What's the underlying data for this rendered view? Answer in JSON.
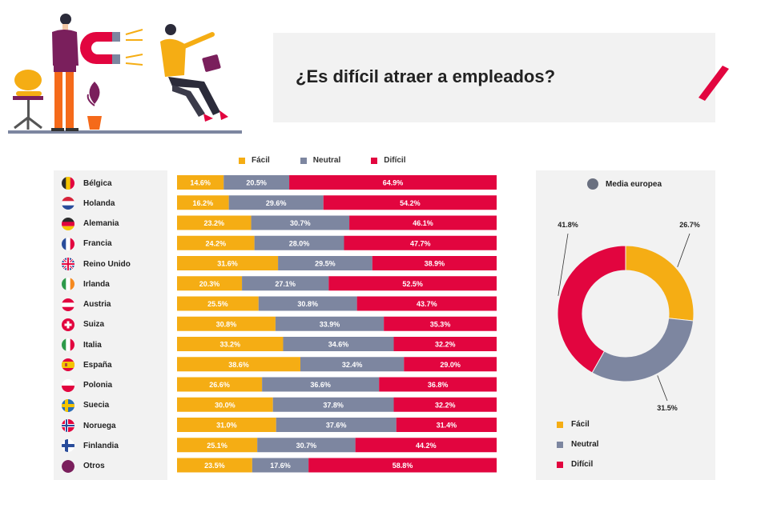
{
  "title": "¿Es difícil atraer a empleados?",
  "colors": {
    "facil": "#f5ad14",
    "neutral": "#7d86a0",
    "dificil": "#e2053f"
  },
  "legend": [
    "Fácil",
    "Neutral",
    "Difícil"
  ],
  "donut_title": "Media europea",
  "chart_data": [
    {
      "type": "bar",
      "stacked": true,
      "orientation": "horizontal",
      "unit": "%",
      "categories": [
        "Bélgica",
        "Holanda",
        "Alemania",
        "Francia",
        "Reino Unido",
        "Irlanda",
        "Austria",
        "Suiza",
        "Italia",
        "España",
        "Polonia",
        "Suecia",
        "Noruega",
        "Finlandia",
        "Otros"
      ],
      "flags": [
        "belgium-flag-icon",
        "netherlands-flag-icon",
        "germany-flag-icon",
        "france-flag-icon",
        "uk-flag-icon",
        "ireland-flag-icon",
        "austria-flag-icon",
        "switzerland-flag-icon",
        "italy-flag-icon",
        "spain-flag-icon",
        "poland-flag-icon",
        "sweden-flag-icon",
        "norway-flag-icon",
        "finland-flag-icon",
        "other-icon"
      ],
      "series": [
        {
          "name": "Fácil",
          "values": [
            14.6,
            16.2,
            23.2,
            24.2,
            31.6,
            20.3,
            25.5,
            30.8,
            33.2,
            38.6,
            26.6,
            30.0,
            31.0,
            25.1,
            23.5
          ],
          "labels": [
            "14.6%",
            "16.2%",
            "23.2%",
            "24.2%",
            "31.6%",
            "20.3%",
            "25.5%",
            "30.8%",
            "33.2%",
            "38.6%",
            "26.6%",
            "30.0%",
            "31.0%",
            "25.1%",
            "23.5%"
          ]
        },
        {
          "name": "Neutral",
          "values": [
            20.5,
            29.6,
            30.7,
            28.0,
            29.5,
            27.1,
            30.8,
            33.9,
            34.6,
            32.4,
            36.6,
            37.8,
            37.6,
            30.7,
            17.6
          ],
          "labels": [
            "20.5%",
            "29.6%",
            "30.7%",
            "28.0%",
            "29.5%",
            "27.1%",
            "30.8%",
            "33.9%",
            "34.6%",
            "32.4%",
            "36.6%",
            "37.8%",
            "37.6%",
            "30.7%",
            "17.6%"
          ]
        },
        {
          "name": "Difícil",
          "values": [
            64.9,
            54.2,
            46.1,
            47.7,
            38.9,
            52.5,
            43.7,
            35.3,
            32.2,
            29.0,
            36.8,
            32.2,
            31.4,
            44.2,
            58.8
          ],
          "labels": [
            "64.9%",
            "54.2%",
            "46.1%",
            "47.7%",
            "38.9%",
            "52.5%",
            "43.7%",
            "35.3%",
            "32.2%",
            "29.0%",
            "36.8%",
            "32.2%",
            "31.4%",
            "44.2%",
            "58.8%"
          ]
        }
      ]
    },
    {
      "type": "pie",
      "donut": true,
      "title": "Media europea",
      "categories": [
        "Fácil",
        "Neutral",
        "Difícil"
      ],
      "values": [
        26.7,
        31.5,
        41.8
      ],
      "labels": [
        "26.7%",
        "31.5%",
        "41.8%"
      ]
    }
  ]
}
